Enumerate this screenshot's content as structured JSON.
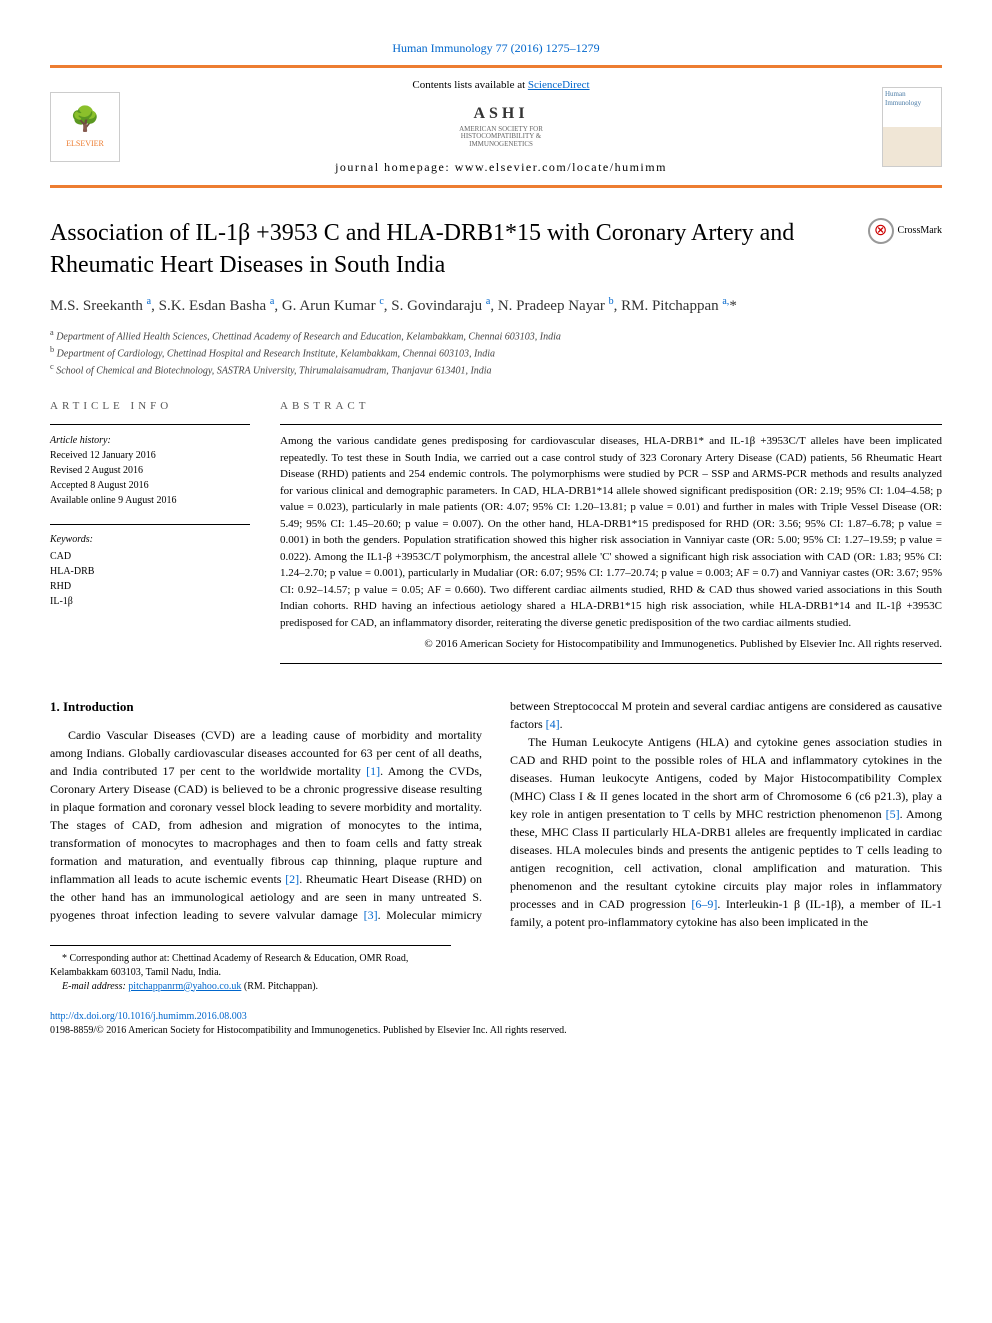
{
  "colors": {
    "accent": "#ed7d31",
    "link": "#0066cc",
    "text": "#000000",
    "muted": "#555555"
  },
  "citation": "Human Immunology 77 (2016) 1275–1279",
  "header": {
    "elsevier_label": "ELSEVIER",
    "contents_prefix": "Contents lists available at ",
    "contents_link": "ScienceDirect",
    "publisher_logo": "ASHI",
    "publisher_sub1": "AMERICAN SOCIETY FOR",
    "publisher_sub2": "HISTOCOMPATIBILITY &",
    "publisher_sub3": "IMMUNOGENETICS",
    "homepage_label": "journal homepage: ",
    "homepage_url": "www.elsevier.com/locate/humimm",
    "journal_cover_title": "Human Immunology"
  },
  "crossmark": "CrossMark",
  "title": "Association of IL-1β +3953 C and HLA-DRB1*15 with Coronary Artery and Rheumatic Heart Diseases in South India",
  "authors_html": "M.S. Sreekanth <sup>a</sup>, S.K. Esdan Basha <sup>a</sup>, G. Arun Kumar <sup>c</sup>, S. Govindaraju <sup>a</sup>, N. Pradeep Nayar <sup>b</sup>, RM. Pitchappan <sup>a,</sup>*",
  "affiliations": [
    {
      "sup": "a",
      "text": "Department of Allied Health Sciences, Chettinad Academy of Research and Education, Kelambakkam, Chennai 603103, India"
    },
    {
      "sup": "b",
      "text": "Department of Cardiology, Chettinad Hospital and Research Institute, Kelambakkam, Chennai 603103, India"
    },
    {
      "sup": "c",
      "text": "School of Chemical and Biotechnology, SASTRA University, Thirumalaisamudram, Thanjavur 613401, India"
    }
  ],
  "article_info": {
    "heading": "ARTICLE INFO",
    "history_label": "Article history:",
    "received": "Received 12 January 2016",
    "revised": "Revised 2 August 2016",
    "accepted": "Accepted 8 August 2016",
    "online": "Available online 9 August 2016",
    "keywords_label": "Keywords:",
    "keywords": [
      "CAD",
      "HLA-DRB",
      "RHD",
      "IL-1β"
    ]
  },
  "abstract": {
    "heading": "ABSTRACT",
    "text": "Among the various candidate genes predisposing for cardiovascular diseases, HLA-DRB1* and IL-1β +3953C/T alleles have been implicated repeatedly. To test these in South India, we carried out a case control study of 323 Coronary Artery Disease (CAD) patients, 56 Rheumatic Heart Disease (RHD) patients and 254 endemic controls. The polymorphisms were studied by PCR – SSP and ARMS-PCR methods and results analyzed for various clinical and demographic parameters. In CAD, HLA-DRB1*14 allele showed significant predisposition (OR: 2.19; 95% CI: 1.04–4.58; p value = 0.023), particularly in male patients (OR: 4.07; 95% CI: 1.20–13.81; p value = 0.01) and further in males with Triple Vessel Disease (OR: 5.49; 95% CI: 1.45–20.60; p value = 0.007). On the other hand, HLA-DRB1*15 predisposed for RHD (OR: 3.56; 95% CI: 1.87–6.78; p value = 0.001) in both the genders. Population stratification showed this higher risk association in Vanniyar caste (OR: 5.00; 95% CI: 1.27–19.59; p value = 0.022). Among the IL1-β +3953C/T polymorphism, the ancestral allele 'C' showed a significant high risk association with CAD (OR: 1.83; 95% CI: 1.24–2.70; p value = 0.001), particularly in Mudaliar (OR: 6.07; 95% CI: 1.77–20.74; p value = 0.003; AF = 0.7) and Vanniyar castes (OR: 3.67; 95% CI: 0.92–14.57; p value = 0.05; AF = 0.660). Two different cardiac ailments studied, RHD & CAD thus showed varied associations in this South Indian cohorts. RHD having an infectious aetiology shared a HLA-DRB1*15 high risk association, while HLA-DRB1*14 and IL-1β +3953C predisposed for CAD, an inflammatory disorder, reiterating the diverse genetic predisposition of the two cardiac ailments studied.",
    "copyright": "© 2016 American Society for Histocompatibility and Immunogenetics. Published by Elsevier Inc. All rights reserved."
  },
  "intro": {
    "heading": "1. Introduction",
    "para1_pre": "Cardio Vascular Diseases (CVD) are a leading cause of morbidity and mortality among Indians. Globally cardiovascular diseases accounted for 63 per cent of all deaths, and India contributed 17 per cent to the worldwide mortality ",
    "ref1": "[1]",
    "para1_mid": ". Among the CVDs, Coronary Artery Disease (CAD) is believed to be a chronic progressive disease resulting in plaque formation and coronary vessel block leading to severe morbidity and mortality. The stages of CAD, from adhesion and migration of monocytes to the intima, transformation of monocytes to macrophages and then to foam cells and fatty streak formation and maturation, and eventually fibrous cap thinning, plaque rupture and inflammation all leads to acute ischemic events ",
    "ref2": "[2]",
    "para1_post": ". Rheumatic Heart Disease (RHD) on the other hand has ",
    "para2_pre": "an immunological aetiology and are seen in many untreated S. pyogenes throat infection leading to severe valvular damage ",
    "ref3": "[3]",
    "para2_mid": ". Molecular mimicry between Streptococcal M protein and several cardiac antigens are considered as causative factors ",
    "ref4": "[4]",
    "para2_post": ".",
    "para3_pre": "The Human Leukocyte Antigens (HLA) and cytokine genes association studies in CAD and RHD point to the possible roles of HLA and inflammatory cytokines in the diseases. Human leukocyte Antigens, coded by Major Histocompatibility Complex (MHC) Class I & II genes located in the short arm of Chromosome 6 (c6 p21.3), play a key role in antigen presentation to T cells by MHC restriction phenomenon ",
    "ref5": "[5]",
    "para3_mid": ". Among these, MHC Class II particularly HLA-DRB1 alleles are frequently implicated in cardiac diseases. HLA molecules binds and presents the antigenic peptides to T cells leading to antigen recognition, cell activation, clonal amplification and maturation. This phenomenon and the resultant cytokine circuits play major roles in inflammatory processes and in CAD progression ",
    "ref69": "[6–9]",
    "para3_post": ". Interleukin-1 β (IL-1β), a member of IL-1 family, a potent pro-inflammatory cytokine has also been implicated in the"
  },
  "footnote": {
    "corr": "* Corresponding author at: Chettinad Academy of Research & Education, OMR Road, Kelambakkam 603103, Tamil Nadu, India.",
    "email_label": "E-mail address: ",
    "email": "pitchappanrm@yahoo.co.uk",
    "email_suffix": " (RM. Pitchappan)."
  },
  "footer": {
    "doi": "http://dx.doi.org/10.1016/j.humimm.2016.08.003",
    "issn_line": "0198-8859/© 2016 American Society for Histocompatibility and Immunogenetics. Published by Elsevier Inc. All rights reserved."
  }
}
